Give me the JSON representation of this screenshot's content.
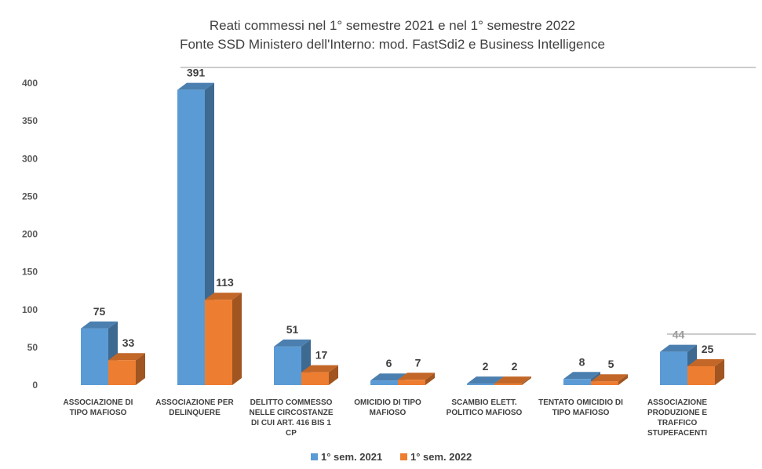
{
  "chart_data": {
    "type": "bar",
    "title": "Reati commessi nel 1° semestre 2021 e nel 1° semestre 2022",
    "subtitle": "Fonte SSD Ministero dell'Interno: mod. FastSdi2 e Business Intelligence",
    "categories": [
      [
        "ASSOCIAZIONE DI",
        "TIPO MAFIOSO"
      ],
      [
        "ASSOCIAZIONE PER",
        "DELINQUERE"
      ],
      [
        "DELITTO COMMESSO",
        "NELLE CIRCOSTANZE",
        "DI CUI ART. 416 BIS 1",
        "CP"
      ],
      [
        "OMICIDIO DI TIPO",
        "MAFIOSO"
      ],
      [
        "SCAMBIO ELETT.",
        "POLITICO MAFIOSO"
      ],
      [
        "TENTATO OMICIDIO DI",
        "TIPO MAFIOSO"
      ],
      [
        "ASSOCIAZIONE",
        "PRODUZIONE E",
        "TRAFFICO",
        "STUPEFACENTI"
      ]
    ],
    "series": [
      {
        "name": "1° sem. 2021",
        "color": "#5b9bd5",
        "values": [
          75,
          391,
          51,
          6,
          2,
          8,
          44
        ]
      },
      {
        "name": "1° sem. 2022",
        "color": "#ed7d31",
        "values": [
          33,
          113,
          17,
          7,
          2,
          5,
          25
        ]
      }
    ],
    "yticks": [
      "0",
      "50",
      "100",
      "150",
      "200",
      "250",
      "300",
      "350",
      "400"
    ],
    "ylim": [
      0,
      400
    ],
    "xlabel": "",
    "ylabel": "",
    "legend_position": "bottom",
    "grid": false,
    "bar_style": "3d"
  }
}
